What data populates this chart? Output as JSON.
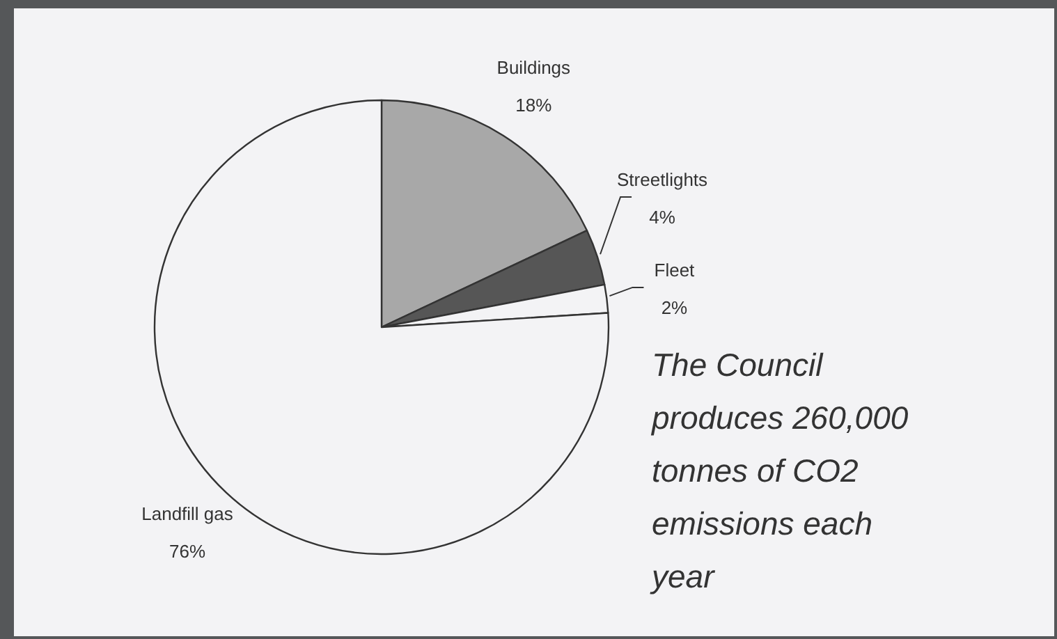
{
  "chart_data": {
    "type": "pie",
    "categories": [
      "Buildings",
      "Streetlights",
      "Fleet",
      "Landfill gas"
    ],
    "values": [
      18,
      4,
      2,
      76
    ],
    "colors": [
      "#a8a8a8",
      "#565656",
      "#f3f3f5",
      "#f3f3f5"
    ],
    "value_labels": [
      "18%",
      "4%",
      "2%",
      "76%"
    ],
    "annotations": [
      "The Council produces 260,000 tonnes of CO2 emissions each year"
    ]
  }
}
